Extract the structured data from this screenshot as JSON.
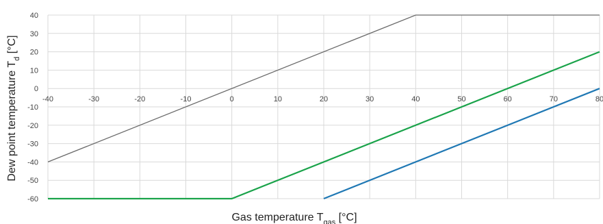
{
  "chart_data": {
    "type": "line",
    "xlabel": {
      "main": "Gas temperature T",
      "sub": "gas",
      "unit": " [°C]"
    },
    "ylabel": {
      "main": "Dew point temperature T",
      "sub": "d",
      "unit": " [°C]"
    },
    "xlim": [
      -40,
      80
    ],
    "ylim": [
      -60,
      40
    ],
    "x_ticks": [
      -40,
      -30,
      -20,
      -10,
      0,
      10,
      20,
      30,
      40,
      50,
      60,
      70,
      80
    ],
    "y_ticks": [
      40,
      30,
      20,
      10,
      0,
      -10,
      -20,
      -30,
      -40,
      -50,
      -60
    ],
    "grid": true,
    "series": [
      {
        "color": "#6b6b6b",
        "points": [
          [
            -40,
            -40
          ],
          [
            40,
            40
          ],
          [
            80,
            40
          ]
        ]
      },
      {
        "color": "#1aa34a",
        "points": [
          [
            -40,
            -60
          ],
          [
            0,
            -60
          ],
          [
            80,
            20
          ]
        ]
      },
      {
        "color": "#1f78b4",
        "points": [
          [
            20,
            -60
          ],
          [
            80,
            0
          ]
        ]
      }
    ]
  }
}
